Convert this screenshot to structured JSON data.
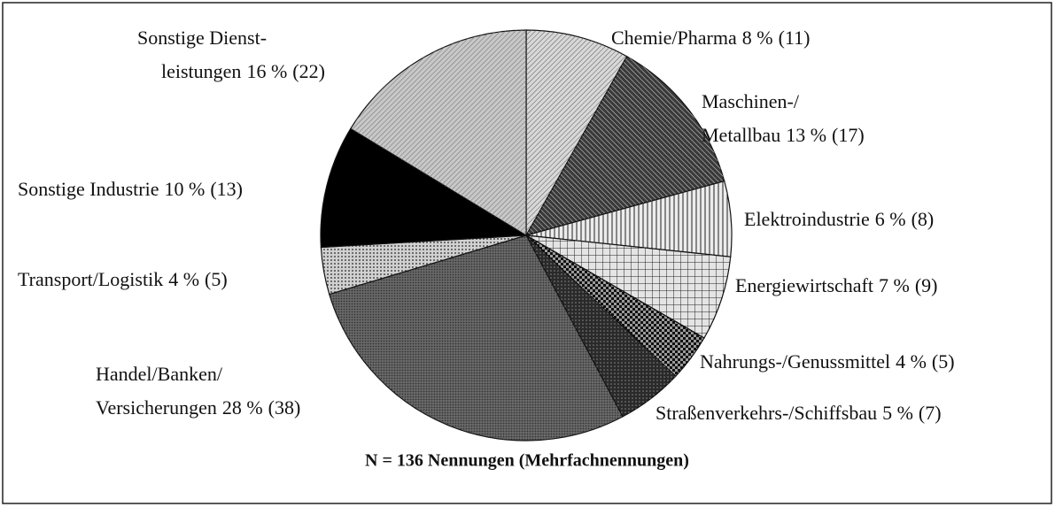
{
  "chart_data": {
    "type": "pie",
    "title": "N = 136 Nennungen (Mehrfachnennungen)",
    "categories": [
      [
        "Chemie/Pharma"
      ],
      [
        "Maschinen-/",
        "Metallbau"
      ],
      [
        "Elektroindustrie"
      ],
      [
        "Energiewirtschaft"
      ],
      [
        "Nahrungs-/Genussmittel"
      ],
      [
        "Straßenverkehrs-/Schiffsbau"
      ],
      [
        "Handel/Banken/",
        "Versicherungen"
      ],
      [
        "Transport/Logistik"
      ],
      [
        "Sonstige Industrie"
      ],
      [
        "Sonstige Dienst-",
        "leistungen"
      ]
    ],
    "values": [
      11,
      17,
      8,
      9,
      5,
      7,
      38,
      5,
      13,
      22
    ],
    "value_labels": [
      "(11)",
      "(17)",
      "(8)",
      "(9)",
      "(5)",
      "(7)",
      "(38)",
      "(5)",
      "(13)",
      "(22)"
    ],
    "percentages": [
      8,
      13,
      6,
      7,
      4,
      5,
      28,
      4,
      10,
      16
    ],
    "percentage_labels": [
      "8 %",
      "13 %",
      "6 %",
      "7 %",
      "4 %",
      "5 %",
      "28 %",
      "4 %",
      "10 %",
      "16 %"
    ],
    "colors": [
      "#d8d8d8",
      "#3a3a3a",
      "#ececec",
      "#e4e4e4",
      "#9a9a9a",
      "#2a2a2a",
      "#6a6a6a",
      "#d0d0d0",
      "#000000",
      "#c8c8c8"
    ]
  }
}
